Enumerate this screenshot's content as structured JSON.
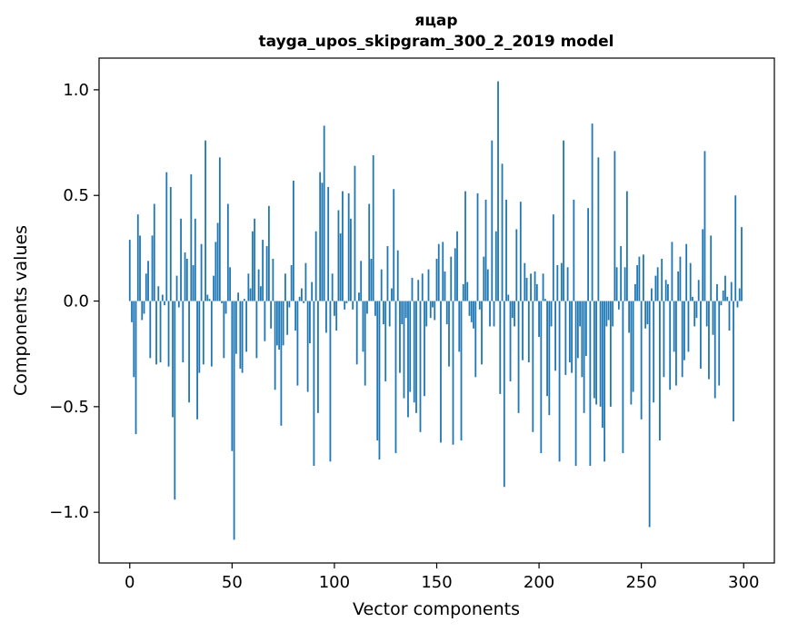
{
  "chart_data": {
    "type": "bar",
    "title": "яцар",
    "subtitle": "tayga_upos_skipgram_300_2_2019 model",
    "xlabel": "Vector components",
    "ylabel": "Components values",
    "xlim": [
      -15,
      315
    ],
    "ylim": [
      -1.24,
      1.15
    ],
    "xticks": [
      0,
      50,
      100,
      150,
      200,
      250,
      300
    ],
    "xtick_labels": [
      "0",
      "50",
      "100",
      "150",
      "200",
      "250",
      "300"
    ],
    "yticks": [
      -1.0,
      -0.5,
      0.0,
      0.5,
      1.0
    ],
    "ytick_labels": [
      "−1.0",
      "−0.5",
      "0.0",
      "0.5",
      "1.0"
    ],
    "grid": false,
    "bar_color": "#1f77b4",
    "x": "0..299 (component index)",
    "values": [
      0.29,
      -0.1,
      -0.36,
      -0.63,
      0.41,
      0.31,
      -0.09,
      -0.06,
      0.13,
      0.19,
      -0.27,
      0.31,
      0.46,
      -0.3,
      0.07,
      -0.29,
      0.03,
      -0.02,
      0.61,
      -0.31,
      0.54,
      -0.55,
      -0.94,
      0.12,
      -0.03,
      0.39,
      -0.29,
      0.23,
      0.2,
      -0.48,
      0.6,
      0.17,
      0.39,
      -0.56,
      -0.34,
      0.27,
      -0.3,
      0.76,
      0.03,
      0.01,
      -0.31,
      0.12,
      0.28,
      0.37,
      0.68,
      -0.01,
      -0.27,
      -0.06,
      0.46,
      0.16,
      -0.71,
      -1.13,
      -0.25,
      0.04,
      -0.32,
      -0.34,
      0.01,
      -0.24,
      0.13,
      0.06,
      0.33,
      0.39,
      -0.27,
      0.15,
      0.07,
      0.29,
      -0.19,
      0.26,
      0.45,
      -0.13,
      0.2,
      -0.42,
      -0.21,
      -0.23,
      -0.59,
      -0.21,
      0.13,
      -0.16,
      -0.03,
      0.17,
      0.57,
      -0.14,
      -0.4,
      0.02,
      0.06,
      -0.01,
      0.18,
      -0.43,
      -0.2,
      0.09,
      -0.78,
      0.33,
      -0.53,
      0.61,
      0.56,
      0.83,
      -0.15,
      0.54,
      -0.76,
      0.13,
      -0.07,
      -0.14,
      0.43,
      0.32,
      0.52,
      -0.04,
      -0.01,
      0.51,
      0.39,
      -0.04,
      0.64,
      -0.3,
      0.04,
      0.19,
      -0.24,
      -0.4,
      -0.06,
      0.46,
      0.2,
      0.69,
      -0.07,
      -0.66,
      -0.75,
      0.15,
      -0.11,
      -0.38,
      0.26,
      -0.12,
      0.06,
      0.53,
      -0.72,
      0.24,
      -0.34,
      -0.11,
      -0.46,
      -0.08,
      -0.55,
      -0.43,
      0.11,
      -0.48,
      -0.53,
      0.1,
      -0.62,
      0.13,
      -0.45,
      -0.12,
      0.15,
      -0.08,
      -0.03,
      -0.09,
      0.2,
      0.27,
      -0.67,
      0.28,
      0.14,
      -0.11,
      -0.31,
      0.21,
      -0.68,
      0.25,
      0.33,
      -0.24,
      -0.66,
      0.08,
      0.52,
      0.09,
      -0.07,
      -0.1,
      -0.13,
      -0.36,
      0.51,
      -0.04,
      -0.3,
      0.21,
      0.48,
      0.15,
      -0.12,
      0.76,
      -0.12,
      0.33,
      1.04,
      -0.44,
      0.65,
      -0.88,
      0.48,
      0.03,
      -0.38,
      -0.08,
      -0.12,
      0.34,
      -0.53,
      0.47,
      -0.28,
      0.18,
      0.11,
      -0.29,
      0.13,
      -0.62,
      0.14,
      0.08,
      -0.17,
      -0.72,
      0.13,
      0.01,
      -0.45,
      -0.54,
      -0.12,
      0.41,
      -0.33,
      0.17,
      -0.76,
      0.18,
      0.76,
      -0.35,
      0.16,
      -0.29,
      -0.34,
      0.48,
      -0.78,
      -0.27,
      -0.12,
      -0.36,
      -0.53,
      -0.26,
      0.44,
      -0.78,
      0.84,
      -0.46,
      -0.49,
      0.68,
      -0.5,
      -0.6,
      -0.76,
      -0.12,
      -0.09,
      -0.5,
      -0.12,
      0.71,
      0.16,
      -0.04,
      0.26,
      -0.72,
      0.16,
      0.52,
      -0.15,
      -0.49,
      -0.43,
      0.08,
      0.17,
      0.21,
      -0.56,
      0.22,
      -0.13,
      -0.11,
      -1.07,
      0.06,
      -0.48,
      0.12,
      0.16,
      -0.66,
      0.2,
      -0.36,
      0.1,
      0.08,
      -0.42,
      0.28,
      -0.24,
      -0.4,
      0.14,
      0.21,
      -0.36,
      -0.28,
      0.27,
      -0.24,
      0.18,
      0.02,
      -0.12,
      -0.08,
      0.1,
      -0.32,
      0.34,
      0.71,
      -0.12,
      -0.37,
      0.31,
      -0.16,
      -0.46,
      0.08,
      -0.4,
      -0.02,
      0.05,
      0.12,
      0.02,
      -0.14,
      0.09,
      -0.57,
      0.5,
      -0.03,
      0.06,
      0.35
    ]
  }
}
